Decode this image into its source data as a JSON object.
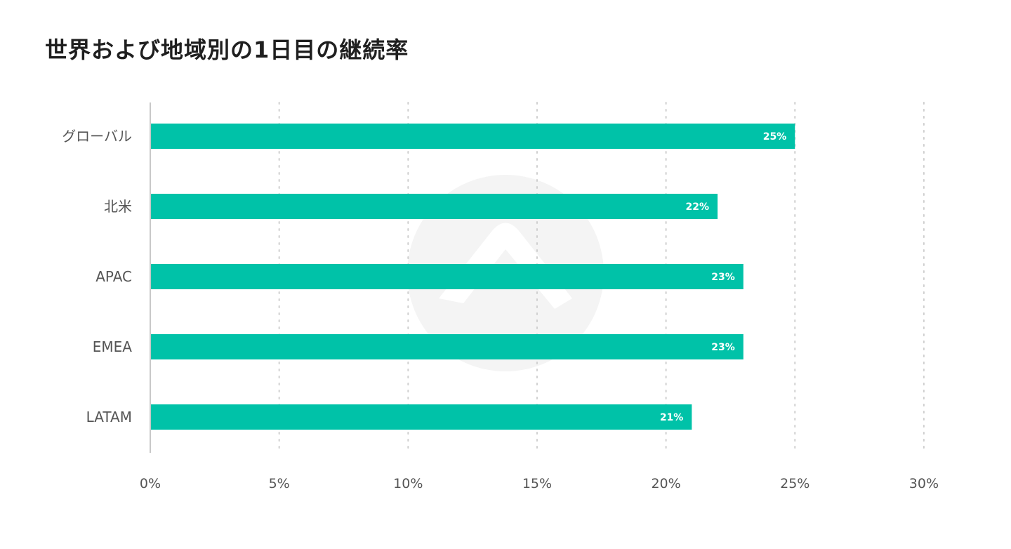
{
  "title": "世界および地域別の1日目の継続率",
  "colors": {
    "bar": "#00C2A8",
    "grid": "#cfcfcf",
    "axis": "#c8c8c8",
    "watermark": "#f4f4f4"
  },
  "watermark_icon": "logo-watermark-icon",
  "chart_data": {
    "type": "bar",
    "orientation": "horizontal",
    "title": "世界および地域別の1日目の継続率",
    "categories": [
      "グローバル",
      "北米",
      "APAC",
      "EMEA",
      "LATAM"
    ],
    "values": [
      25,
      22,
      23,
      23,
      21
    ],
    "value_labels": [
      "25%",
      "22%",
      "23%",
      "23%",
      "21%"
    ],
    "xlim": [
      0,
      30
    ],
    "x_ticks": [
      0,
      5,
      10,
      15,
      20,
      25,
      30
    ],
    "x_tick_labels": [
      "0%",
      "5%",
      "10%",
      "15%",
      "20%",
      "25%",
      "30%"
    ],
    "grid": "vertical dotted",
    "legend": "none"
  }
}
